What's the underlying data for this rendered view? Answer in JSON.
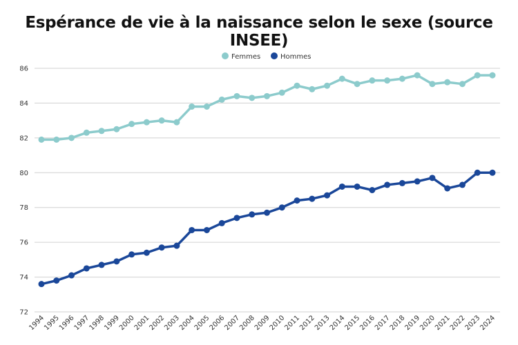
{
  "chart_data": {
    "type": "line",
    "title": "Espérance de vie à la naissance selon le sexe (source INSEE)",
    "xlabel": "",
    "ylabel": "",
    "ylim": [
      72,
      86
    ],
    "yticks": [
      72,
      74,
      76,
      78,
      80,
      82,
      84,
      86
    ],
    "grid": true,
    "legend_position": "top",
    "x": [
      1994,
      1995,
      1996,
      1997,
      1998,
      1999,
      2000,
      2001,
      2002,
      2003,
      2004,
      2005,
      2006,
      2007,
      2008,
      2009,
      2010,
      2011,
      2012,
      2013,
      2014,
      2015,
      2016,
      2017,
      2018,
      2019,
      2020,
      2021,
      2022,
      2023,
      2024
    ],
    "series": [
      {
        "name": "Femmes",
        "color": "#8ccbcc",
        "values": [
          81.9,
          81.9,
          82.0,
          82.3,
          82.4,
          82.5,
          82.8,
          82.9,
          83.0,
          82.9,
          83.8,
          83.8,
          84.2,
          84.4,
          84.3,
          84.4,
          84.6,
          85.0,
          84.8,
          85.0,
          85.4,
          85.1,
          85.3,
          85.3,
          85.4,
          85.6,
          85.1,
          85.2,
          85.1,
          85.6,
          85.6
        ]
      },
      {
        "name": "Hommes",
        "color": "#1a4799",
        "values": [
          73.6,
          73.8,
          74.1,
          74.5,
          74.7,
          74.9,
          75.3,
          75.4,
          75.7,
          75.8,
          76.7,
          76.7,
          77.1,
          77.4,
          77.6,
          77.7,
          78.0,
          78.4,
          78.5,
          78.7,
          79.2,
          79.2,
          79.0,
          79.3,
          79.4,
          79.5,
          79.7,
          79.1,
          79.3,
          80.0,
          80.0
        ]
      }
    ]
  }
}
